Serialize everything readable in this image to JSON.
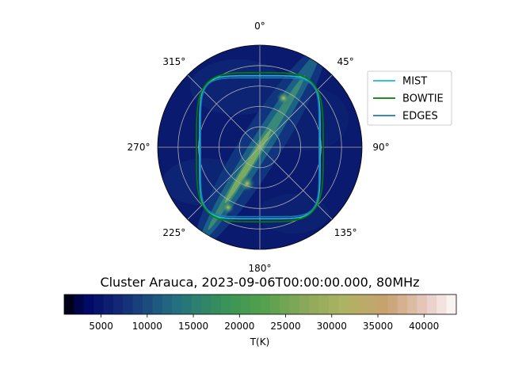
{
  "chart_data": {
    "type": "polar_sky_map",
    "title": "Cluster Arauca, 2023-09-06T00:00:00.000, 80MHz",
    "angle_tick_labels": [
      "0°",
      "45°",
      "90°",
      "135°",
      "180°",
      "225°",
      "270°",
      "315°"
    ],
    "angle_tick_values": [
      0,
      45,
      90,
      135,
      180,
      225,
      270,
      315
    ],
    "direction": "clockwise",
    "zero_location": "top",
    "radial_grid": true,
    "legend_position": "upper-right",
    "series": [
      {
        "name": "MIST",
        "color": "#17becf"
      },
      {
        "name": "BOWTIE",
        "color": "#008000"
      },
      {
        "name": "EDGES",
        "color": "#1f77b4"
      }
    ],
    "colorbar": {
      "label": "T(K)",
      "tick_labels": [
        "5000",
        "10000",
        "15000",
        "20000",
        "25000",
        "30000",
        "35000",
        "40000"
      ],
      "tick_values": [
        5000,
        10000,
        15000,
        20000,
        25000,
        30000,
        35000,
        40000
      ],
      "vmin": 1000,
      "vmax": 43500,
      "colormap": "gist_earth"
    }
  }
}
